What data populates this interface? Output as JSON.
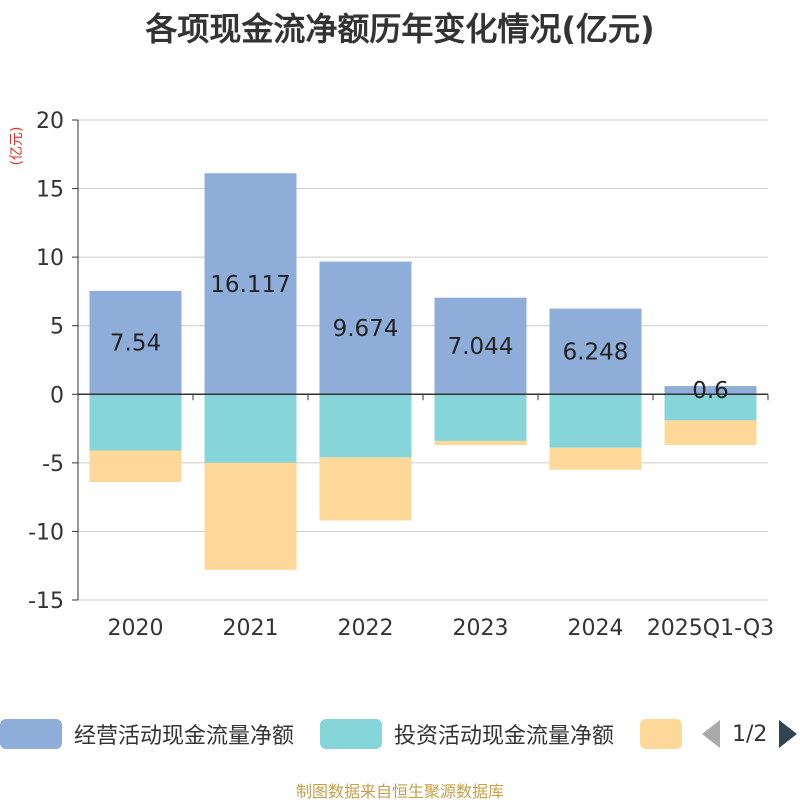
{
  "chart_data": {
    "type": "bar",
    "stacked": true,
    "title": "各项现金流净额历年变化情况(亿元)",
    "ylabel": "(亿元)",
    "xlabel": "",
    "ylim": [
      -15,
      20
    ],
    "yticks": [
      20,
      15,
      10,
      5,
      0,
      -5,
      -10,
      -15
    ],
    "categories": [
      "2020",
      "2021",
      "2022",
      "2023",
      "2024",
      "2025Q1-Q3"
    ],
    "series": [
      {
        "name": "经营活动现金流量净额",
        "color": "#8eadd9",
        "values": [
          7.54,
          16.117,
          9.674,
          7.044,
          6.248,
          0.6
        ],
        "labels": [
          "7.54",
          "16.117",
          "9.674",
          "7.044",
          "6.248",
          "0.6"
        ]
      },
      {
        "name": "投资活动现金流量净额",
        "color": "#86d5d8",
        "values": [
          -4.1,
          -5.0,
          -4.6,
          -3.4,
          -3.9,
          -1.9
        ]
      },
      {
        "name": "",
        "color": "#fed899",
        "values": [
          -2.3,
          -7.8,
          -4.6,
          -0.3,
          -1.6,
          -1.8
        ]
      }
    ]
  },
  "legend": {
    "items": [
      {
        "label": "经营活动现金流量净额"
      },
      {
        "label": "投资活动现金流量净额"
      }
    ],
    "page_text": "1/2"
  },
  "source": "制图数据来自恒生聚源数据库"
}
